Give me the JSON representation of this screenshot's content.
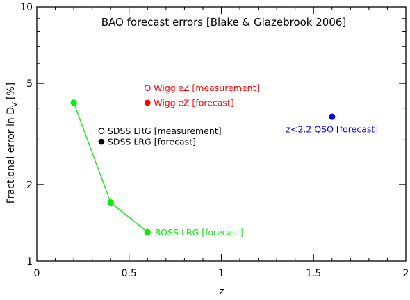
{
  "chart_data": {
    "type": "scatter",
    "title": "BAO forecast errors [Blake & Glazebrook 2006]",
    "xlabel": "z",
    "ylabel_main": "Fractional error in D",
    "ylabel_sub": "V",
    "ylabel_unit": "[%]",
    "xlim": [
      0,
      2
    ],
    "ylim": [
      1,
      10
    ],
    "yscale": "log",
    "x_ticks": [
      0,
      0.5,
      1,
      1.5,
      2
    ],
    "x_tick_labels": [
      "0",
      "0.5",
      "1",
      "1.5",
      "2"
    ],
    "y_ticks": [
      1,
      2,
      5,
      10
    ],
    "y_tick_labels": [
      "1",
      "2",
      "5",
      "10"
    ],
    "grid": false,
    "series": [
      {
        "name": "SDSS LRG [measurement]",
        "color": "#000000",
        "marker": "open-circle",
        "points": []
      },
      {
        "name": "SDSS LRG [forecast]",
        "color": "#000000",
        "marker": "filled-circle",
        "points": []
      },
      {
        "name": "WiggleZ [measurement]",
        "color": "#ff0000",
        "marker": "open-circle",
        "points": []
      },
      {
        "name": "WiggleZ [forecast]",
        "color": "#ff0000",
        "marker": "filled-circle",
        "points": []
      },
      {
        "name": "BOSS LRG [forecast]",
        "color": "#00ee00",
        "marker": "filled-circle",
        "line": true,
        "points": [
          [
            0.2,
            4.2
          ],
          [
            0.4,
            1.7
          ],
          [
            0.6,
            1.3
          ]
        ]
      },
      {
        "name": "z<2.2 QSO [forecast]",
        "color": "#0000ff",
        "marker": "filled-circle",
        "points": [
          [
            1.6,
            3.7
          ]
        ]
      }
    ],
    "annotations": [
      {
        "text": "WiggleZ [measurement]",
        "color": "#ff0000",
        "marker": "open-circle",
        "at": [
          0.6,
          4.8
        ]
      },
      {
        "text": "WiggleZ [forecast]",
        "color": "#ff0000",
        "marker": "filled-circle",
        "at": [
          0.6,
          4.2
        ]
      },
      {
        "text": "SDSS LRG [measurement]",
        "color": "#000000",
        "marker": "open-circle",
        "at": [
          0.35,
          3.25
        ]
      },
      {
        "text": "SDSS LRG [forecast]",
        "color": "#000000",
        "marker": "filled-circle",
        "at": [
          0.35,
          2.95
        ]
      },
      {
        "text": "BOSS LRG [forecast]",
        "color": "#00ee00",
        "marker": "none",
        "at": [
          0.64,
          1.3
        ]
      },
      {
        "text": "z<2.2 QSO [forecast]",
        "color": "#0000ff",
        "marker": "none",
        "at": [
          1.6,
          3.3
        ]
      }
    ]
  }
}
